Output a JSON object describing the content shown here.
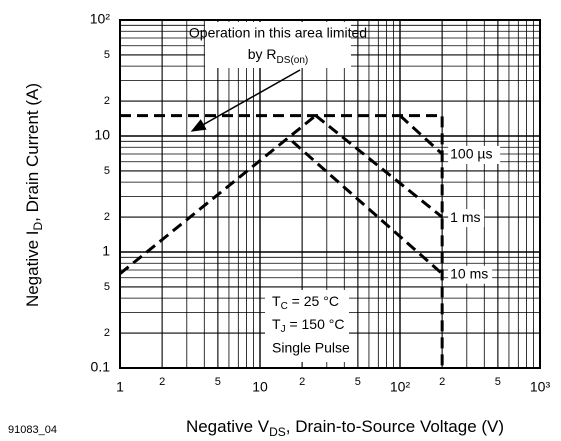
{
  "chart_data": {
    "type": "line",
    "xlabel": {
      "main": "Negative V",
      "sub": "DS",
      "rest": ", Drain-to-Source Voltage (V)"
    },
    "ylabel": {
      "main": "Negative I",
      "sub": "D",
      "rest": ", Drain Current (A)"
    },
    "figure_id": "91083_04",
    "annotation": {
      "line1": "Operation in this area limited",
      "line2": "by R",
      "line2_sub": "DS(on)"
    },
    "conditions": {
      "tc": "T",
      "tc_sub": "C",
      "tc_rest": " = 25 °C",
      "tj": "T",
      "tj_sub": "J",
      "tj_rest": " = 150 °C",
      "pulse": "Single Pulse"
    },
    "xscale": "log",
    "yscale": "log",
    "grid": true,
    "minor_ticks": [
      2,
      3,
      4,
      5,
      6,
      7,
      8,
      9
    ],
    "xlim": [
      1,
      1000
    ],
    "ylim": [
      0.1,
      100
    ],
    "xticks": [
      1,
      {
        "value": 2,
        "label": "2"
      },
      {
        "value": 5,
        "label": "5"
      },
      10,
      {
        "value": 20,
        "label": "2"
      },
      {
        "value": 50,
        "label": "5"
      },
      {
        "value": 100,
        "label": "10²"
      },
      {
        "value": 200,
        "label": "2"
      },
      {
        "value": 500,
        "label": "5"
      },
      {
        "value": 1000,
        "label": "10³"
      }
    ],
    "yticks": [
      0.1,
      {
        "value": 0.2,
        "label": "2"
      },
      {
        "value": 0.5,
        "label": "5"
      },
      1,
      {
        "value": 2,
        "label": "2"
      },
      {
        "value": 5,
        "label": "5"
      },
      10,
      {
        "value": 20,
        "label": "2"
      },
      {
        "value": 50,
        "label": "5"
      },
      {
        "value": 100,
        "label": "10²"
      }
    ],
    "series": [
      {
        "color": "#000000",
        "x": [
          1,
          25
        ],
        "values": [
          0.65,
          15
        ]
      },
      {
        "color": "#000000",
        "x": [
          1,
          200,
          200
        ],
        "values": [
          15,
          15,
          0.1
        ]
      },
      {
        "name": "100 µs",
        "color": "#000000",
        "x": [
          100,
          200
        ],
        "values": [
          15,
          7
        ]
      },
      {
        "name": "1 ms",
        "color": "#000000",
        "x": [
          25,
          200
        ],
        "values": [
          15,
          2
        ]
      },
      {
        "name": "10 ms",
        "color": "#000000",
        "x": [
          17,
          200
        ],
        "values": [
          9,
          0.65
        ]
      }
    ]
  }
}
